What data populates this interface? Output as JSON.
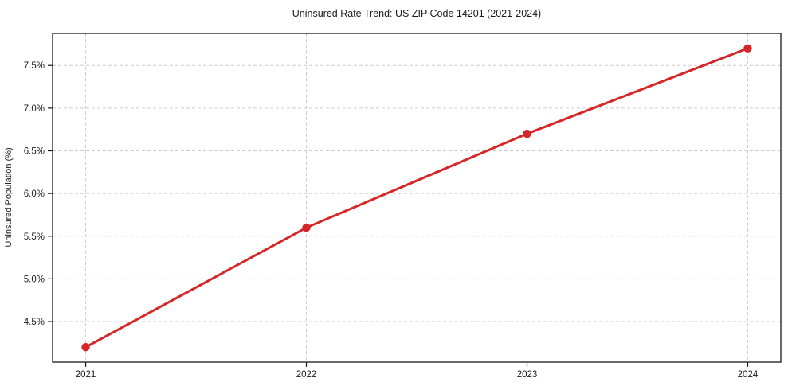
{
  "chart_data": {
    "type": "line",
    "title": "Uninsured Rate Trend: US ZIP Code 14201 (2021-2024)",
    "xlabel": "",
    "ylabel": "Uninsured Population (%)",
    "x": [
      2021,
      2022,
      2023,
      2024
    ],
    "x_tick_labels": [
      "2021",
      "2022",
      "2023",
      "2024"
    ],
    "series": [
      {
        "values": [
          4.2,
          5.6,
          6.7,
          7.7
        ]
      }
    ],
    "y_tick_values": [
      4.5,
      5.0,
      5.5,
      6.0,
      6.5,
      7.0,
      7.5
    ],
    "y_tick_labels": [
      "4.5%",
      "5.0%",
      "5.5%",
      "6.0%",
      "6.5%",
      "7.0%",
      "7.5%"
    ],
    "xlim": [
      2020.85,
      2024.15
    ],
    "ylim": [
      4.025,
      7.875
    ],
    "grid": true,
    "grid_style": "dashed",
    "legend_position": "none",
    "marker": "circle"
  },
  "colors": {
    "line": "#d62728",
    "marker": "#d62728",
    "grid": "#cccccc",
    "axis": "#1a1a1a",
    "text": "#1a1a1a",
    "background": "#ffffff"
  }
}
